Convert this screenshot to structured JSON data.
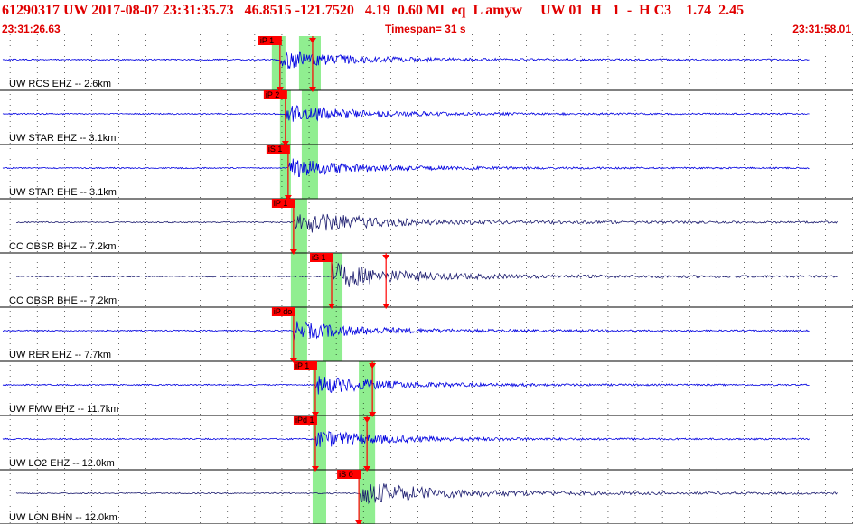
{
  "header": {
    "title": "61290317 UW 2017-08-07 23:31:35.73   46.8515 -121.7520   4.19  0.60 Ml  eq  L amyw     UW 01  H   1  -  H C3    1.74  2.45",
    "start_time": "23:31:26.63",
    "timespan": "Timespan=  31 s",
    "end_time": "23:31:58.01"
  },
  "colors": {
    "title": "#e00000",
    "trace_blue": "#0000e0",
    "trace_dark": "#1a1a6e",
    "pick": "#ff0000",
    "window": "#90ee90"
  },
  "channels": [
    {
      "label": "UW RCS EHZ -- 2.6km",
      "color": "blue",
      "picks": [
        {
          "label": "iP 1",
          "t": 10.3
        },
        {
          "label": "",
          "t": 11.5
        }
      ],
      "windows": [
        [
          10.0,
          10.5
        ],
        [
          11.0,
          11.8
        ]
      ]
    },
    {
      "label": "UW STAR EHZ -- 3.1km",
      "color": "blue",
      "picks": [
        {
          "label": "iP 2",
          "t": 10.5
        }
      ],
      "windows": [
        [
          10.3,
          10.7
        ],
        [
          11.1,
          11.7
        ]
      ]
    },
    {
      "label": "UW STAR EHE -- 3.1km",
      "color": "blue",
      "picks": [
        {
          "label": "iS 1",
          "t": 10.6
        }
      ],
      "windows": [
        [
          10.3,
          10.7
        ],
        [
          11.1,
          11.7
        ]
      ]
    },
    {
      "label": "CC OBSR BHZ -- 7.2km",
      "color": "dark",
      "picks": [
        {
          "label": "iP 1",
          "t": 10.8
        }
      ],
      "windows": [
        [
          10.7,
          11.3
        ]
      ]
    },
    {
      "label": "CC OBSR BHE -- 7.2km",
      "color": "dark",
      "picks": [
        {
          "label": "iS 1",
          "t": 12.2
        },
        {
          "label": "",
          "t": 14.2
        }
      ],
      "windows": [
        [
          10.7,
          11.3
        ],
        [
          11.9,
          12.6
        ]
      ]
    },
    {
      "label": "UW RER EHZ -- 7.7km",
      "color": "blue",
      "picks": [
        {
          "label": "iP do",
          "t": 10.8
        }
      ],
      "windows": [
        [
          10.7,
          11.3
        ],
        [
          11.9,
          12.6
        ]
      ]
    },
    {
      "label": "UW FMW EHZ -- 11.7km",
      "color": "blue",
      "picks": [
        {
          "label": "iP 1",
          "t": 11.6
        },
        {
          "label": "",
          "t": 13.7
        }
      ],
      "windows": [
        [
          11.5,
          12.0
        ],
        [
          13.2,
          13.8
        ]
      ]
    },
    {
      "label": "UW LO2 EHZ -- 12.0km",
      "color": "blue",
      "picks": [
        {
          "label": "iPd 1",
          "t": 11.6
        },
        {
          "label": "",
          "t": 13.5
        }
      ],
      "windows": [
        [
          11.5,
          12.0
        ],
        [
          13.2,
          13.8
        ]
      ]
    },
    {
      "label": "UW LON BHN -- 12.0km",
      "color": "dark",
      "picks": [
        {
          "label": "iS 0",
          "t": 13.2
        }
      ],
      "windows": [
        [
          11.5,
          12.0
        ],
        [
          13.2,
          13.8
        ]
      ]
    }
  ]
}
